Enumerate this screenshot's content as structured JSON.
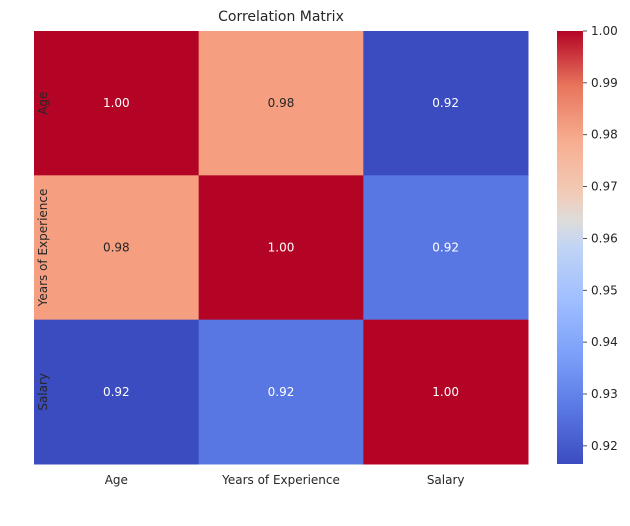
{
  "chart_data": {
    "type": "heatmap",
    "title": "Correlation Matrix",
    "xlabel": "",
    "ylabel": "",
    "x_categories": [
      "Age",
      "Years of Experience",
      "Salary"
    ],
    "y_categories": [
      "Age",
      "Years of Experience",
      "Salary"
    ],
    "values": [
      [
        1.0,
        0.98,
        0.92
      ],
      [
        0.98,
        1.0,
        0.92
      ],
      [
        0.92,
        0.92,
        1.0
      ]
    ],
    "display_values": [
      [
        "1.00",
        "0.98",
        "0.92"
      ],
      [
        "0.98",
        "1.00",
        "0.92"
      ],
      [
        "0.92",
        "0.92",
        "1.00"
      ]
    ],
    "cell_colors": [
      [
        "#b40426",
        "#f59f80",
        "#3b4cc0"
      ],
      [
        "#f59f80",
        "#b40426",
        "#5977e3"
      ],
      [
        "#3b4cc0",
        "#5977e3",
        "#b40426"
      ]
    ],
    "colormap": "coolwarm",
    "colorbar": {
      "range": [
        0.9165,
        1.0
      ],
      "ticks": [
        0.92,
        0.93,
        0.94,
        0.95,
        0.96,
        0.97,
        0.98,
        0.99,
        1.0
      ],
      "tick_labels": [
        "0.92",
        "0.93",
        "0.94",
        "0.95",
        "0.96",
        "0.97",
        "0.98",
        "0.99",
        "1.00"
      ]
    },
    "grid": false,
    "legend": "colorbar-right"
  }
}
